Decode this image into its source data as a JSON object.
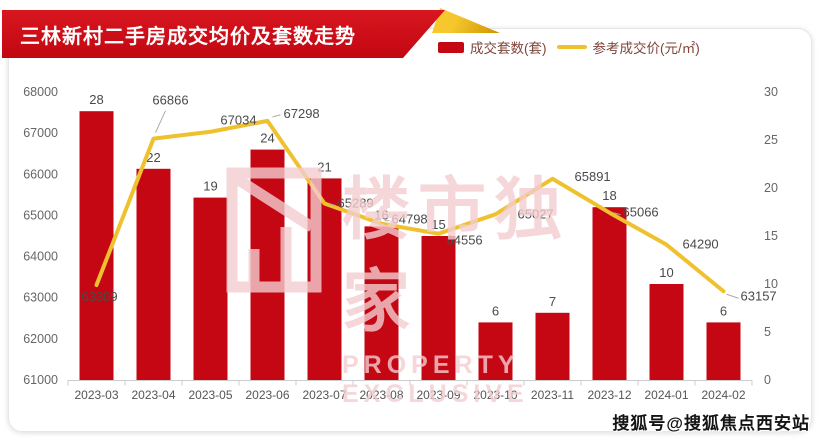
{
  "title": "三林新村二手房成交均价及套数走势",
  "legend": [
    {
      "label": "成交套数(套)",
      "type": "bar",
      "color": "#c40713"
    },
    {
      "label": "参考成交价(元/㎡)",
      "type": "line",
      "color": "#f0c12f"
    }
  ],
  "watermark": {
    "cn": "楼市独家",
    "en": "PROPERTY EXCLUSIVE"
  },
  "footer": {
    "text": "搜狐号@搜狐焦点西安站"
  },
  "chart_data": {
    "type": "combo",
    "title": "三林新村二手房成交均价及套数走势",
    "categories": [
      "2023-03",
      "2023-04",
      "2023-05",
      "2023-06",
      "2023-07",
      "2023-08",
      "2023-09",
      "2023-10",
      "2023-11",
      "2023-12",
      "2024-01",
      "2024-02"
    ],
    "series": [
      {
        "name": "成交套数(套)",
        "type": "bar",
        "axis": "right",
        "color": "#c40713",
        "values": [
          28,
          22,
          19,
          24,
          21,
          16,
          15,
          6,
          7,
          18,
          10,
          6
        ]
      },
      {
        "name": "参考成交价(元/㎡)",
        "type": "line",
        "axis": "left",
        "color": "#f0c12f",
        "values": [
          63309,
          66866,
          67034,
          67298,
          65289,
          64798,
          64556,
          65027,
          65891,
          65066,
          64290,
          63157
        ]
      }
    ],
    "left_axis": {
      "min": 61000,
      "max": 68000,
      "step": 1000,
      "ticks": [
        68000,
        67000,
        66000,
        65000,
        64000,
        63000,
        62000,
        61000
      ]
    },
    "right_axis": {
      "min": 0,
      "max": 30,
      "step": 5,
      "ticks": [
        30,
        25,
        20,
        15,
        10,
        5,
        0
      ]
    },
    "grid": false,
    "legend_position": "top-right",
    "data_labels": true
  }
}
